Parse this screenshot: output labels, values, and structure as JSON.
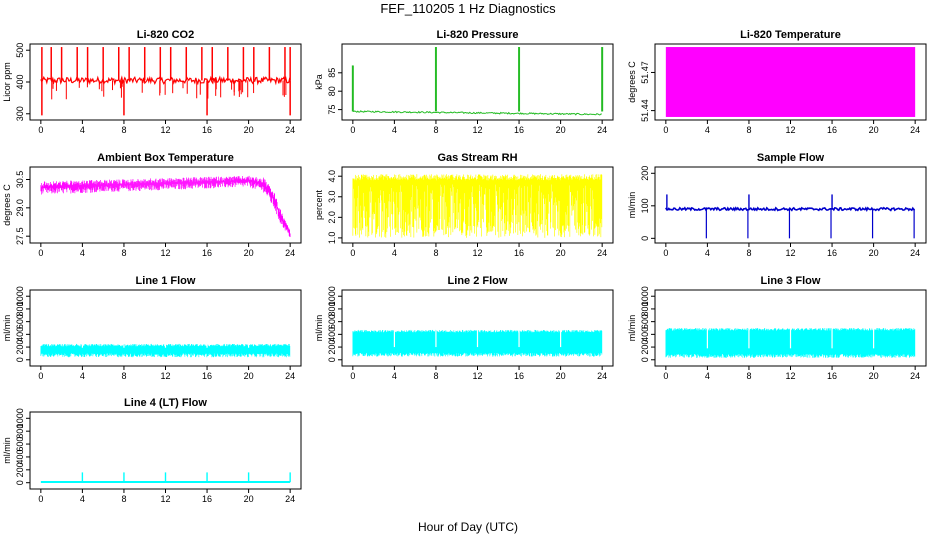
{
  "figure_title": "FEF_110205  1 Hz Diagnostics",
  "x_axis_label": "Hour of Day (UTC)",
  "chart_data": [
    {
      "id": "co2",
      "type": "line",
      "title": "Li-820 CO2",
      "ylabel": "Licor ppm",
      "color": "#ff0000",
      "xlim": [
        0,
        24
      ],
      "x_ticks": [
        0,
        4,
        8,
        12,
        16,
        20,
        24
      ],
      "ylim": [
        290,
        510
      ],
      "y_ticks": [
        300,
        400,
        500
      ],
      "series": [
        {
          "x": [
            0,
            24
          ],
          "baseline": 405,
          "noise_low": 395,
          "noise_high": 415,
          "spikes_high_at": [
            0.1,
            1,
            2,
            3.5,
            4.5,
            6,
            7.5,
            8.5,
            10,
            11.5,
            12.5,
            14,
            15.5,
            16.5,
            18,
            19.5,
            20.5,
            22,
            23.5,
            24
          ],
          "spike_high_value": 510,
          "spikes_low_at": [
            0.1,
            8,
            16,
            24
          ],
          "spike_low_value": 295
        }
      ]
    },
    {
      "id": "pressure",
      "type": "line",
      "title": "Li-820 Pressure",
      "ylabel": "kPa",
      "color": "#22bb22",
      "xlim": [
        0,
        24
      ],
      "x_ticks": [
        0,
        4,
        8,
        12,
        16,
        20,
        24
      ],
      "ylim": [
        73,
        92
      ],
      "y_ticks": [
        75,
        80,
        85
      ],
      "series": [
        {
          "x": [
            0,
            24
          ],
          "baseline_start": 74.5,
          "baseline_end": 73.7,
          "spikes_at": [
            0,
            8,
            16,
            24
          ],
          "spike_values": [
            87,
            92,
            92,
            92
          ]
        }
      ]
    },
    {
      "id": "temperature",
      "type": "area",
      "title": "Li-820 Temperature",
      "ylabel": "degrees C",
      "color": "#ff00ff",
      "xlim": [
        0,
        24
      ],
      "x_ticks": [
        0,
        4,
        8,
        12,
        16,
        20,
        24
      ],
      "ylim": [
        51.435,
        51.49
      ],
      "y_ticks": [
        51.44,
        51.47
      ],
      "series": [
        {
          "x": [
            0,
            24
          ],
          "low": 51.435,
          "high": 51.49
        }
      ]
    },
    {
      "id": "ambient",
      "type": "line",
      "title": "Ambient Box Temperature",
      "ylabel": "degrees C",
      "color": "#ff00ff",
      "xlim": [
        0,
        24
      ],
      "x_ticks": [
        0,
        4,
        8,
        12,
        16,
        20,
        24
      ],
      "ylim": [
        27.3,
        31.0
      ],
      "y_ticks": [
        27.5,
        29.0,
        30.5
      ],
      "series": [
        {
          "x": [
            0,
            20,
            21.5,
            22.5,
            23,
            24
          ],
          "y_upper": [
            30.4,
            30.7,
            30.6,
            29.8,
            29.0,
            27.8
          ],
          "y_lower": [
            29.7,
            30.1,
            29.8,
            28.9,
            28.2,
            27.4
          ]
        }
      ]
    },
    {
      "id": "rh",
      "type": "line",
      "title": "Gas Stream RH",
      "ylabel": "percent",
      "color": "#ffff00",
      "xlim": [
        0,
        24
      ],
      "x_ticks": [
        0,
        4,
        8,
        12,
        16,
        20,
        24
      ],
      "ylim": [
        0.9,
        4.3
      ],
      "y_ticks": [
        1.0,
        2.0,
        3.0,
        4.0
      ],
      "series": [
        {
          "x": [
            0,
            24
          ],
          "y_max": 4.1,
          "y_min": 1.0
        }
      ]
    },
    {
      "id": "sample_flow",
      "type": "line",
      "title": "Sample Flow",
      "ylabel": "ml/min",
      "color": "#0000cc",
      "xlim": [
        0,
        24
      ],
      "x_ticks": [
        0,
        4,
        8,
        12,
        16,
        20,
        24
      ],
      "ylim": [
        -5,
        210
      ],
      "y_ticks": [
        0,
        100,
        200
      ],
      "series": [
        {
          "x": [
            0,
            24
          ],
          "baseline": 90,
          "spikes_high_at": [
            0.1,
            8,
            16
          ],
          "spike_high_value": 135,
          "dips_at": [
            3.9,
            7.9,
            11.9,
            15.9,
            19.9,
            23.9
          ],
          "dip_value": 0
        }
      ]
    },
    {
      "id": "line1",
      "type": "line",
      "title": "Line 1 Flow",
      "ylabel": "ml/min",
      "color": "#00ffff",
      "xlim": [
        0,
        24
      ],
      "x_ticks": [
        0,
        4,
        8,
        12,
        16,
        20,
        24
      ],
      "ylim": [
        -50,
        1050
      ],
      "y_ticks": [
        0,
        200,
        400,
        600,
        800,
        1000
      ],
      "series": [
        {
          "x": [
            0,
            24
          ],
          "y_max": 250,
          "y_min": 40
        }
      ]
    },
    {
      "id": "line2",
      "type": "line",
      "title": "Line 2 Flow",
      "ylabel": "ml/min",
      "color": "#00ffff",
      "xlim": [
        0,
        24
      ],
      "x_ticks": [
        0,
        4,
        8,
        12,
        16,
        20,
        24
      ],
      "ylim": [
        -50,
        1050
      ],
      "y_ticks": [
        0,
        200,
        400,
        600,
        800,
        1000
      ],
      "series": [
        {
          "x": [
            0,
            24
          ],
          "y_max": 470,
          "y_min": 50
        }
      ]
    },
    {
      "id": "line3",
      "type": "line",
      "title": "Line 3 Flow",
      "ylabel": "ml/min",
      "color": "#00ffff",
      "xlim": [
        0,
        24
      ],
      "x_ticks": [
        0,
        4,
        8,
        12,
        16,
        20,
        24
      ],
      "ylim": [
        -50,
        1050
      ],
      "y_ticks": [
        0,
        200,
        400,
        600,
        800,
        1000
      ],
      "series": [
        {
          "x": [
            0,
            24
          ],
          "y_max": 500,
          "y_min": 30
        }
      ]
    },
    {
      "id": "line4",
      "type": "line",
      "title": "Line 4 (LT) Flow",
      "ylabel": "ml/min",
      "color": "#00ffff",
      "xlim": [
        0,
        24
      ],
      "x_ticks": [
        0,
        4,
        8,
        12,
        16,
        20,
        24
      ],
      "ylim": [
        -50,
        1050
      ],
      "y_ticks": [
        0,
        200,
        400,
        600,
        800,
        1000
      ],
      "series": [
        {
          "x": [
            0,
            24
          ],
          "baseline": 10,
          "spikes_at": [
            4,
            8,
            12,
            16,
            20,
            24
          ],
          "spike_value": 160
        }
      ]
    }
  ]
}
